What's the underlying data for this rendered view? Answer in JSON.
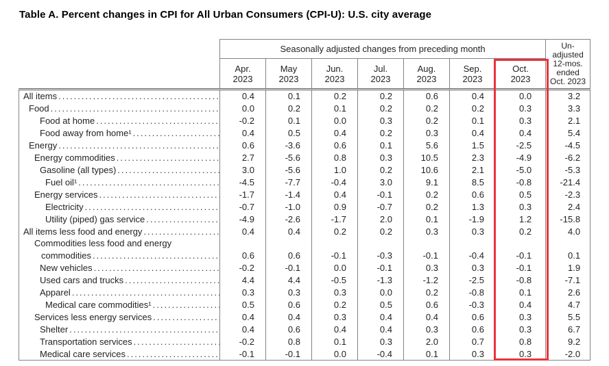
{
  "title": "Table A. Percent changes in CPI for All Urban Consumers (CPI-U): U.S. city average",
  "table": {
    "group_header": "Seasonally adjusted changes from preceding month",
    "unadjusted_header": "Un-\nadjusted\n12-mos.\nended\nOct. 2023",
    "month_headers": [
      "Apr.\n2023",
      "May\n2023",
      "Jun.\n2023",
      "Jul.\n2023",
      "Aug.\n2023",
      "Sep.\n2023",
      "Oct.\n2023"
    ],
    "highlight": {
      "color": "#ea333b",
      "target": "Oct. 2023 column"
    },
    "rows": [
      {
        "label": "All items",
        "indent": 0,
        "values": [
          "0.4",
          "0.1",
          "0.2",
          "0.2",
          "0.6",
          "0.4",
          "0.0",
          "3.2"
        ]
      },
      {
        "label": "Food",
        "indent": 1,
        "values": [
          "0.0",
          "0.2",
          "0.1",
          "0.2",
          "0.2",
          "0.2",
          "0.3",
          "3.3"
        ]
      },
      {
        "label": "Food at home",
        "indent": 3,
        "values": [
          "-0.2",
          "0.1",
          "0.0",
          "0.3",
          "0.2",
          "0.1",
          "0.3",
          "2.1"
        ]
      },
      {
        "label": "Food away from home¹",
        "indent": 3,
        "values": [
          "0.4",
          "0.5",
          "0.4",
          "0.2",
          "0.3",
          "0.4",
          "0.4",
          "5.4"
        ]
      },
      {
        "label": "Energy",
        "indent": 1,
        "values": [
          "0.6",
          "-3.6",
          "0.6",
          "0.1",
          "5.6",
          "1.5",
          "-2.5",
          "-4.5"
        ]
      },
      {
        "label": "Energy commodities",
        "indent": 2,
        "values": [
          "2.7",
          "-5.6",
          "0.8",
          "0.3",
          "10.5",
          "2.3",
          "-4.9",
          "-6.2"
        ]
      },
      {
        "label": "Gasoline (all types)",
        "indent": 3,
        "values": [
          "3.0",
          "-5.6",
          "1.0",
          "0.2",
          "10.6",
          "2.1",
          "-5.0",
          "-5.3"
        ]
      },
      {
        "label": "Fuel oil¹",
        "indent": 4,
        "values": [
          "-4.5",
          "-7.7",
          "-0.4",
          "3.0",
          "9.1",
          "8.5",
          "-0.8",
          "-21.4"
        ]
      },
      {
        "label": "Energy services",
        "indent": 2,
        "values": [
          "-1.7",
          "-1.4",
          "0.4",
          "-0.1",
          "0.2",
          "0.6",
          "0.5",
          "-2.3"
        ]
      },
      {
        "label": "Electricity",
        "indent": 4,
        "values": [
          "-0.7",
          "-1.0",
          "0.9",
          "-0.7",
          "0.2",
          "1.3",
          "0.3",
          "2.4"
        ]
      },
      {
        "label": "Utility (piped) gas service",
        "indent": 4,
        "values": [
          "-4.9",
          "-2.6",
          "-1.7",
          "2.0",
          "0.1",
          "-1.9",
          "1.2",
          "-15.8"
        ]
      },
      {
        "label": "All items less food and energy",
        "indent": 0,
        "values": [
          "0.4",
          "0.4",
          "0.2",
          "0.2",
          "0.3",
          "0.3",
          "0.2",
          "4.0"
        ]
      },
      {
        "label": "Commodities less food and energy",
        "label2": "commodities",
        "indent": 2,
        "values": [
          "0.6",
          "0.6",
          "-0.1",
          "-0.3",
          "-0.1",
          "-0.4",
          "-0.1",
          "0.1"
        ]
      },
      {
        "label": "New vehicles",
        "indent": 3,
        "values": [
          "-0.2",
          "-0.1",
          "0.0",
          "-0.1",
          "0.3",
          "0.3",
          "-0.1",
          "1.9"
        ]
      },
      {
        "label": "Used cars and trucks",
        "indent": 3,
        "values": [
          "4.4",
          "4.4",
          "-0.5",
          "-1.3",
          "-1.2",
          "-2.5",
          "-0.8",
          "-7.1"
        ]
      },
      {
        "label": "Apparel",
        "indent": 3,
        "values": [
          "0.3",
          "0.3",
          "0.3",
          "0.0",
          "0.2",
          "-0.8",
          "0.1",
          "2.6"
        ]
      },
      {
        "label": "Medical care commodities¹",
        "indent": 4,
        "values": [
          "0.5",
          "0.6",
          "0.2",
          "0.5",
          "0.6",
          "-0.3",
          "0.4",
          "4.7"
        ]
      },
      {
        "label": "Services less energy services",
        "indent": 2,
        "values": [
          "0.4",
          "0.4",
          "0.3",
          "0.4",
          "0.4",
          "0.6",
          "0.3",
          "5.5"
        ]
      },
      {
        "label": "Shelter",
        "indent": 3,
        "values": [
          "0.4",
          "0.6",
          "0.4",
          "0.4",
          "0.3",
          "0.6",
          "0.3",
          "6.7"
        ]
      },
      {
        "label": "Transportation services",
        "indent": 3,
        "values": [
          "-0.2",
          "0.8",
          "0.1",
          "0.3",
          "2.0",
          "0.7",
          "0.8",
          "9.2"
        ]
      },
      {
        "label": "Medical care services",
        "indent": 3,
        "values": [
          "-0.1",
          "-0.1",
          "0.0",
          "-0.4",
          "0.1",
          "0.3",
          "0.3",
          "-2.0"
        ]
      }
    ]
  }
}
